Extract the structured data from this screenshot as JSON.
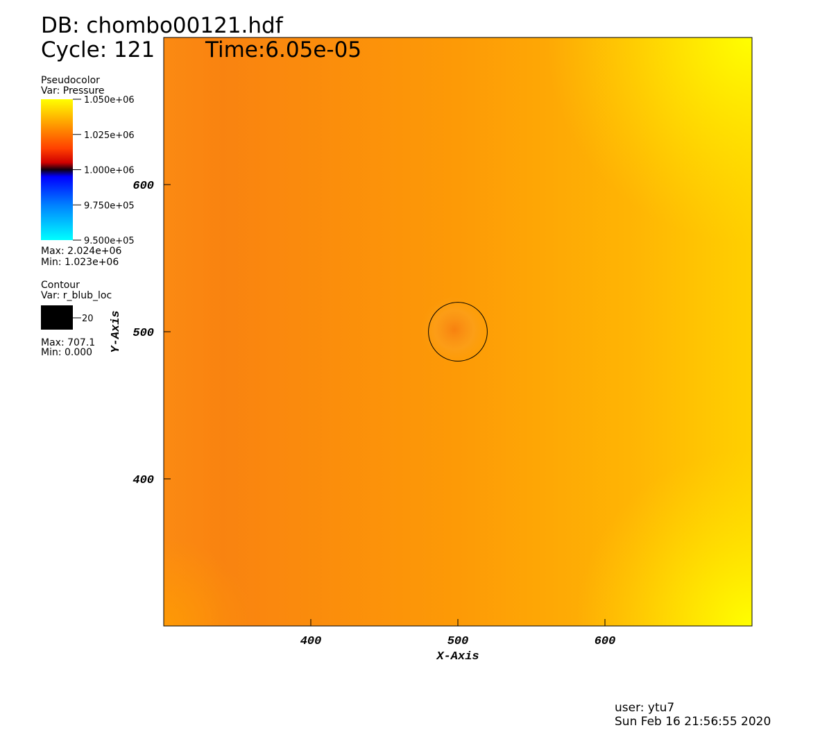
{
  "chart_data": {
    "type": "pseudocolor",
    "title": "DB: chombo00121.hdf",
    "cycle": "Cycle: 121",
    "time": "Time:6.05e-05",
    "x_label": "X-Axis",
    "y_label": "Y-Axis",
    "xlim": [
      300,
      700
    ],
    "ylim": [
      300,
      700
    ],
    "xticks": [
      400,
      500,
      600
    ],
    "yticks": [
      400,
      500,
      600
    ],
    "pseudocolor": {
      "title": "Pseudocolor",
      "variable": "Var: Pressure",
      "clim": [
        950000,
        1050000
      ],
      "ticks": [
        {
          "value": 1050000,
          "label": "1.050e+06"
        },
        {
          "value": 1025000,
          "label": "1.025e+06"
        },
        {
          "value": 1000000,
          "label": "1.000e+06"
        },
        {
          "value": 975000,
          "label": "9.750e+05"
        },
        {
          "value": 950000,
          "label": "9.500e+05"
        }
      ],
      "max": "Max: 2.024e+06",
      "min": "Min:  1.023e+06"
    },
    "contour": {
      "title": "Contour",
      "variable": "Var: r_blub_loc",
      "levels": [
        20
      ],
      "color": "#000000",
      "max": "Max: 707.1",
      "min": "Min: 0.000"
    },
    "user": "user: ytu7",
    "date": "Sun Feb 16 21:56:55 2020"
  }
}
